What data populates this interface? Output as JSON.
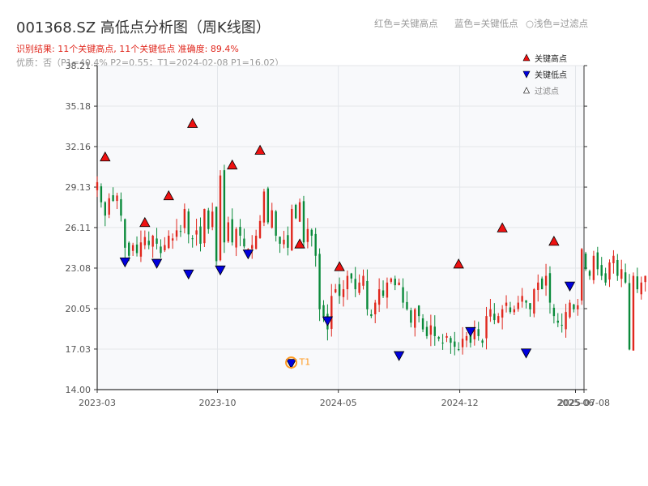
{
  "header": {
    "title": "001368.SZ 高低点分析图（周K线图）",
    "result_line": "识别结果: 11个关键高点, 11个关键低点   准确度: 89.4%",
    "quality_line": "优质：否（P1=40.4%  P2=0.55；T1=2024-02-08 P1=16.02）",
    "legend_high": "红色=关键高点",
    "legend_low": "蓝色=关键低点",
    "legend_filtered": "○浅色=过滤点"
  },
  "colors": {
    "up": "#e0281e",
    "down": "#0a8a3a",
    "high_marker": "#ee1111",
    "low_marker": "#0000dd",
    "t1_marker": "#ff9a1f",
    "grid": "#e3e6ea",
    "plot_bg": "#f8f9fb"
  },
  "chart_data": {
    "type": "candlestick",
    "ylim": [
      14.0,
      38.21
    ],
    "yticks": [
      14.0,
      17.03,
      20.05,
      23.08,
      26.11,
      29.13,
      32.16,
      35.18,
      38.21
    ],
    "ytick_labels": [
      "14.00",
      "17.03",
      "20.05",
      "23.08",
      "26.11",
      "29.13",
      "32.16",
      "35.18",
      "38.21"
    ],
    "x_start": "2023-03-03",
    "x_end": "2025-07-08",
    "xticks": [
      {
        "date": "2023-03-03",
        "label": "2023-03"
      },
      {
        "date": "2023-10-01",
        "label": "2023-10"
      },
      {
        "date": "2024-05-01",
        "label": "2024-05"
      },
      {
        "date": "2024-12-01",
        "label": "2024-12"
      },
      {
        "date": "2025-06-23",
        "label": "2025-06"
      },
      {
        "date": "2025-07-08",
        "label": "2025-07-08"
      }
    ],
    "legend": [
      {
        "label": "关键高点",
        "marker": "triangle-up-red"
      },
      {
        "label": "关键低点",
        "marker": "triangle-down-blue"
      },
      {
        "label": "过滤点",
        "marker": "triangle-up-hollow"
      }
    ],
    "t1": {
      "label": "T1",
      "date": "2024-02-08",
      "value": 16.02
    },
    "key_highs": [
      {
        "date": "2023-03-17",
        "value": 30.9
      },
      {
        "date": "2023-05-26",
        "value": 26.0
      },
      {
        "date": "2023-07-07",
        "value": 28.0
      },
      {
        "date": "2023-08-18",
        "value": 33.4
      },
      {
        "date": "2023-10-27",
        "value": 30.3
      },
      {
        "date": "2023-12-15",
        "value": 31.4
      },
      {
        "date": "2024-02-23",
        "value": 24.4
      },
      {
        "date": "2024-05-03",
        "value": 22.7
      },
      {
        "date": "2024-11-29",
        "value": 22.9
      },
      {
        "date": "2025-02-14",
        "value": 25.6
      },
      {
        "date": "2025-05-16",
        "value": 24.6
      }
    ],
    "key_lows": [
      {
        "date": "2023-04-21",
        "value": 23.6
      },
      {
        "date": "2023-06-16",
        "value": 23.5
      },
      {
        "date": "2023-08-11",
        "value": 22.7
      },
      {
        "date": "2023-10-06",
        "value": 23.0
      },
      {
        "date": "2023-11-24",
        "value": 24.2
      },
      {
        "date": "2024-02-08",
        "value": 16.02
      },
      {
        "date": "2024-04-12",
        "value": 19.2
      },
      {
        "date": "2024-08-16",
        "value": 16.6
      },
      {
        "date": "2024-12-20",
        "value": 18.4
      },
      {
        "date": "2025-03-28",
        "value": 16.8
      },
      {
        "date": "2025-06-13",
        "value": 21.8
      }
    ],
    "weekly_closes": [
      29.5,
      28.0,
      27.0,
      28.3,
      28.1,
      28.5,
      27.0,
      24.6,
      24.0,
      24.8,
      24.2,
      25.0,
      25.4,
      24.8,
      25.5,
      24.9,
      24.2,
      24.8,
      25.5,
      25.3,
      25.9,
      25.8,
      27.5,
      25.6,
      25.3,
      25.9,
      24.9,
      27.5,
      26.0,
      27.3,
      23.6,
      30.0,
      25.0,
      26.5,
      25.0,
      26.0,
      25.5,
      24.7,
      24.5,
      24.8,
      25.5,
      26.6,
      28.8,
      26.5,
      27.4,
      25.5,
      24.9,
      25.2,
      24.6,
      27.5,
      26.8,
      28.0,
      25.0,
      26.0,
      25.5,
      24.0,
      20.0,
      19.5,
      18.5,
      21.0,
      21.5,
      21.0,
      21.5,
      22.5,
      22.3,
      21.5,
      22.0,
      22.5,
      20.0,
      19.5,
      20.5,
      21.5,
      21.0,
      22.0,
      22.3,
      21.8,
      22.0,
      20.5,
      20.0,
      19.0,
      20.0,
      19.5,
      18.5,
      18.0,
      18.8,
      18.0,
      17.8,
      17.5,
      18.0,
      17.5,
      17.2,
      17.0,
      17.8,
      18.0,
      17.5,
      18.5,
      18.0,
      17.5,
      19.5,
      20.0,
      19.2,
      19.5,
      20.0,
      20.5,
      19.8,
      20.0,
      20.5,
      21.0,
      20.5,
      20.0,
      21.5,
      22.0,
      21.5,
      22.5,
      20.5,
      19.5,
      19.0,
      18.8,
      19.8,
      20.5,
      20.0,
      20.3,
      24.5,
      23.0,
      22.5,
      24.0,
      23.0,
      22.5,
      22.0,
      23.5,
      24.0,
      22.5,
      23.0,
      22.0,
      17.0,
      22.5,
      21.5,
      22.0,
      22.5,
      21.8,
      22.5,
      23.0,
      22.5,
      24.0,
      23.5,
      23.0,
      22.5,
      23.5,
      24.0,
      23.8,
      24.5,
      26.0,
      25.0,
      25.5,
      26.3,
      25.5
    ]
  }
}
